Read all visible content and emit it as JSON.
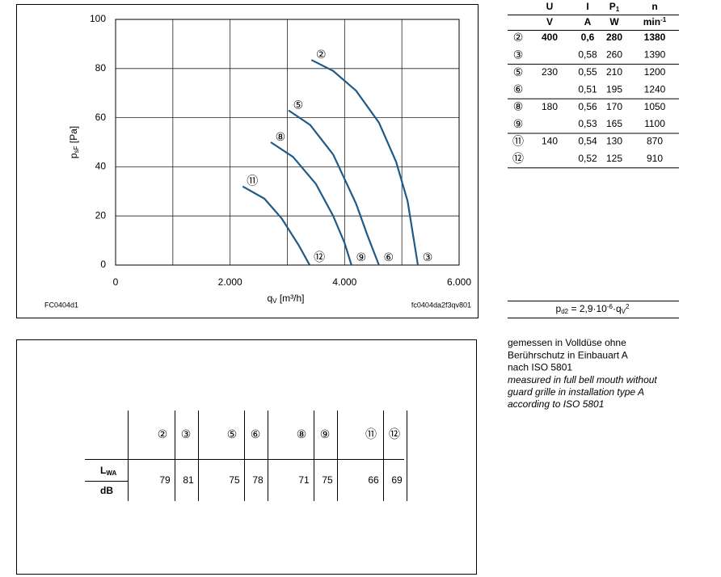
{
  "chart_data": {
    "type": "line",
    "xlim": [
      0,
      6000
    ],
    "ylim": [
      0,
      100
    ],
    "xticks": [
      0,
      {
        "value": 2000,
        "label": "2.000"
      },
      {
        "value": 4000,
        "label": "4.000"
      },
      {
        "value": 6000,
        "label": "6.000"
      }
    ],
    "yticks": [
      0,
      20,
      40,
      60,
      80,
      100
    ],
    "grid": true,
    "ylabel": {
      "base": "p",
      "sub": "sF",
      "rest": " [Pa]"
    },
    "xlabel": {
      "base": "q",
      "sub": "V",
      "rest": " [m³/h]"
    },
    "note_left": "FC0404d1",
    "note_right": "fc0404da2f3qv801",
    "series": [
      {
        "labels": [
          "②",
          "③"
        ],
        "color": "#1f5a86",
        "x": [
          3420,
          3800,
          4200,
          4600,
          4900,
          5100,
          5280
        ],
        "values": [
          83.5,
          79,
          71,
          58,
          42,
          26,
          0
        ]
      },
      {
        "labels": [
          "⑤",
          "⑥"
        ],
        "color": "#1f5a86",
        "x": [
          3020,
          3400,
          3800,
          4200,
          4400,
          4600
        ],
        "values": [
          63,
          57,
          45,
          25,
          12,
          0
        ]
      },
      {
        "labels": [
          "⑧",
          "⑨"
        ],
        "color": "#1f5a86",
        "x": [
          2710,
          3100,
          3500,
          3800,
          4000,
          4120
        ],
        "values": [
          50,
          44,
          33,
          20,
          9,
          0
        ]
      },
      {
        "labels": [
          "⑪",
          "⑫"
        ],
        "color": "#1f5a86",
        "x": [
          2220,
          2600,
          2900,
          3200,
          3390
        ],
        "values": [
          32,
          27,
          19,
          8,
          0
        ]
      }
    ]
  },
  "table": {
    "header": [
      {
        "text": "U"
      },
      {
        "text": "I"
      },
      {
        "text": "P",
        "sub": "1"
      },
      {
        "text": "n"
      }
    ],
    "units": [
      {
        "text": "V"
      },
      {
        "text": "A"
      },
      {
        "text": "W"
      },
      {
        "text": "min",
        "sup": "-1"
      }
    ],
    "rows": [
      {
        "bold": true,
        "cells": [
          "②",
          "400",
          "0,6",
          "280",
          "1380"
        ]
      },
      {
        "cells": [
          "③",
          null,
          "0,58",
          "260",
          "1390"
        ]
      },
      {
        "cells": [
          "⑤",
          "230",
          "0,55",
          "210",
          "1200"
        ]
      },
      {
        "cells": [
          "⑥",
          null,
          "0,51",
          "195",
          "1240"
        ]
      },
      {
        "cells": [
          "⑧",
          "180",
          "0,56",
          "170",
          "1050"
        ]
      },
      {
        "cells": [
          "⑨",
          null,
          "0,53",
          "165",
          "1100"
        ]
      },
      {
        "cells": [
          "⑪",
          "140",
          "0,54",
          "130",
          "870"
        ]
      },
      {
        "cells": [
          "⑫",
          null,
          "0,52",
          "125",
          "910"
        ]
      }
    ]
  },
  "formula": [
    {
      "text": "p"
    },
    {
      "text": "d2",
      "kind": "sub"
    },
    {
      "text": " = 2,9·10"
    },
    {
      "text": "-6",
      "kind": "sup"
    },
    {
      "text": "·q"
    },
    {
      "text": "V",
      "kind": "sub"
    },
    {
      "text": "2",
      "kind": "sup"
    }
  ],
  "notes": [
    {
      "text": "gemessen in Volldüse ohne"
    },
    {
      "text": "Berührschutz in Einbauart A"
    },
    {
      "text": "nach ISO 5801"
    },
    {
      "text": "measured in full bell mouth without",
      "italic": true
    },
    {
      "text": "guard grille in installation type A",
      "italic": true
    },
    {
      "text": "according to ISO 5801",
      "italic": true
    }
  ],
  "sound": {
    "columns": [
      "②",
      "③",
      "⑤",
      "⑥",
      "⑧",
      "⑨",
      "⑪",
      "⑫"
    ],
    "row_label": {
      "base": "L",
      "sub": "WA"
    },
    "unit": "dB",
    "values": [
      "79",
      "81",
      "75",
      "78",
      "71",
      "75",
      "66",
      "69"
    ]
  }
}
